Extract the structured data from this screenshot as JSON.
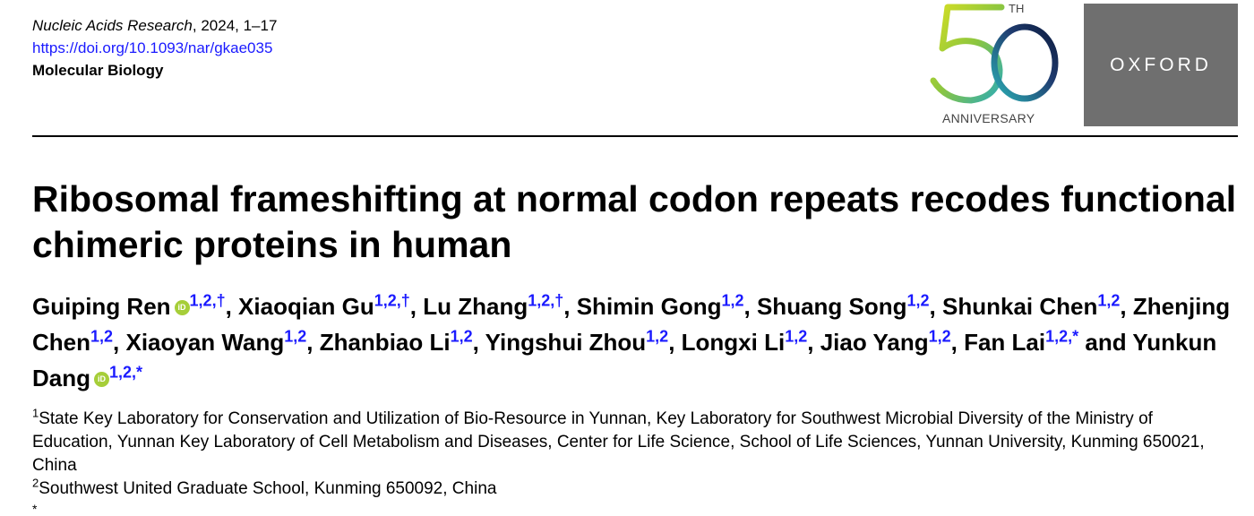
{
  "journal": {
    "name": "Nucleic Acids Research",
    "year_pages": ", 2024, 1–17",
    "doi": "https://doi.org/10.1093/nar/gkae035",
    "section": "Molecular Biology"
  },
  "anniversary": {
    "number": "50",
    "suffix": "TH",
    "label": "ANNIVERSARY"
  },
  "publisher": {
    "name": "OXFORD"
  },
  "title": "Ribosomal frameshifting at normal codon repeats recodes functional chimeric proteins in human",
  "authors": [
    {
      "name": "Guiping Ren",
      "sup": "1,2,†",
      "orcid": true
    },
    {
      "name": "Xiaoqian Gu",
      "sup": "1,2,†"
    },
    {
      "name": "Lu Zhang",
      "sup": "1,2,†"
    },
    {
      "name": "Shimin Gong",
      "sup": "1,2"
    },
    {
      "name": "Shuang Song",
      "sup": "1,2"
    },
    {
      "name": "Shunkai Chen",
      "sup": "1,2"
    },
    {
      "name": "Zhenjing Chen",
      "sup": "1,2"
    },
    {
      "name": "Xiaoyan Wang",
      "sup": "1,2"
    },
    {
      "name": "Zhanbiao Li",
      "sup": "1,2"
    },
    {
      "name": "Yingshui Zhou",
      "sup": "1,2"
    },
    {
      "name": "Longxi Li",
      "sup": "1,2"
    },
    {
      "name": "Jiao Yang",
      "sup": "1,2"
    },
    {
      "name": "Fan Lai",
      "sup": "1,2,*"
    },
    {
      "name": "Yunkun Dang",
      "sup": "1,2,*",
      "orcid": true
    }
  ],
  "orcid_label": "iD",
  "separator": ", ",
  "conjunction": " and ",
  "affiliations": [
    {
      "num": "1",
      "text": "State Key Laboratory for Conservation and Utilization of Bio-Resource in Yunnan, Key Laboratory for Southwest Microbial Diversity of the Ministry of Education, Yunnan Key Laboratory of Cell Metabolism and Diseases, Center for Life Science, School of Life Sciences, Yunnan University, Kunming 650021, China"
    },
    {
      "num": "2",
      "text": "Southwest United Graduate School, Kunming 650092, China"
    }
  ],
  "footnote_mark": "*"
}
